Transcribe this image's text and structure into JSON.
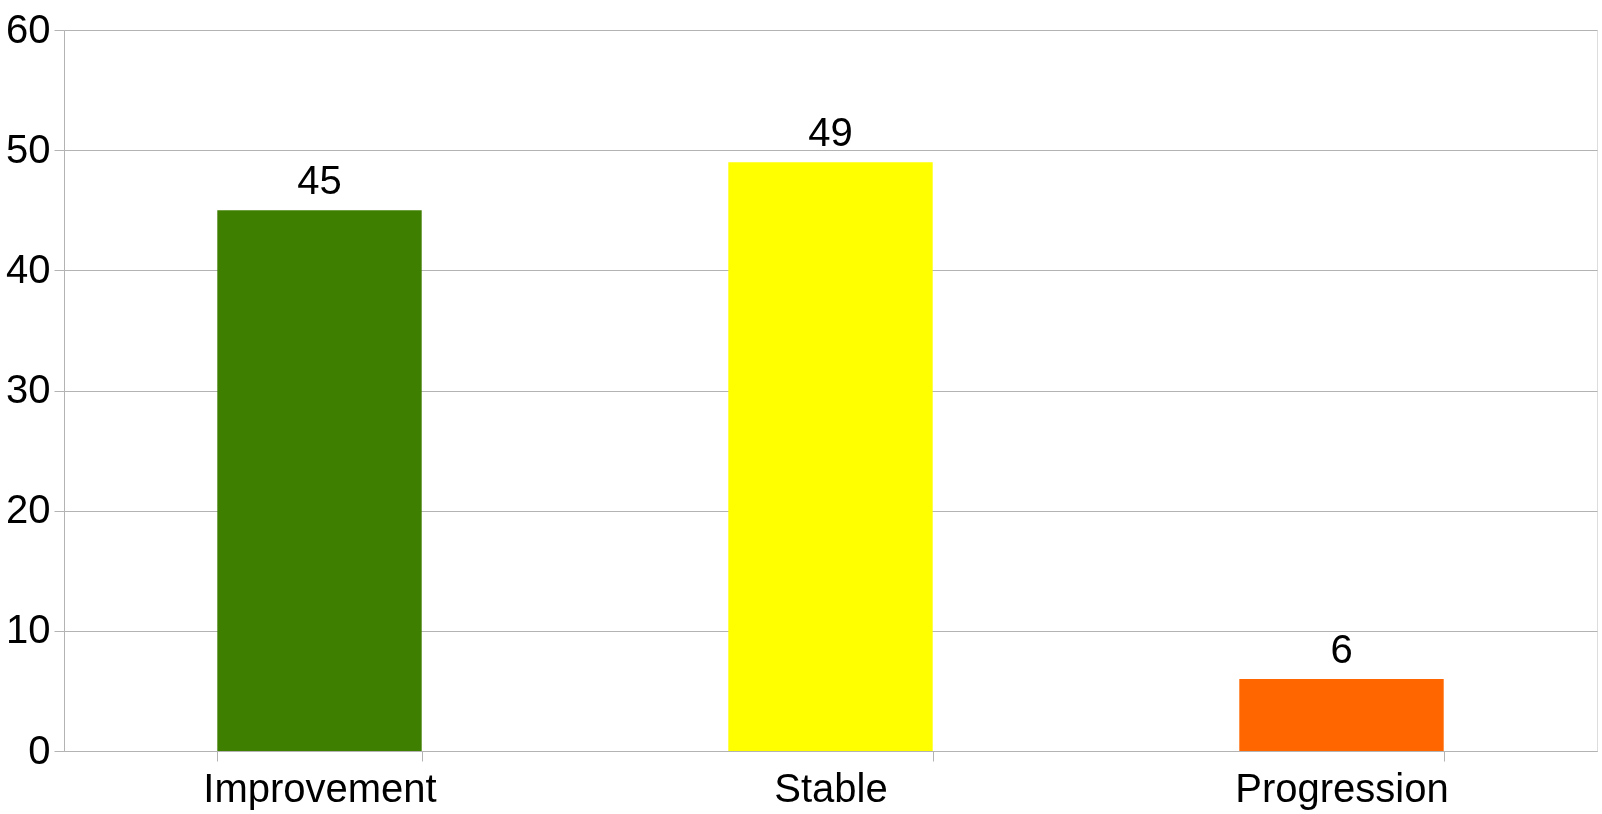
{
  "chart_data": {
    "type": "bar",
    "categories": [
      "Improvement",
      "Stable",
      "Progression"
    ],
    "values": [
      45,
      49,
      6
    ],
    "colors": [
      "#3f7f00",
      "#ffff00",
      "#ff6600"
    ],
    "ylim": [
      0,
      60
    ],
    "yticks": [
      0,
      10,
      20,
      30,
      40,
      50,
      60
    ],
    "grid": "y",
    "data_labels": true
  }
}
